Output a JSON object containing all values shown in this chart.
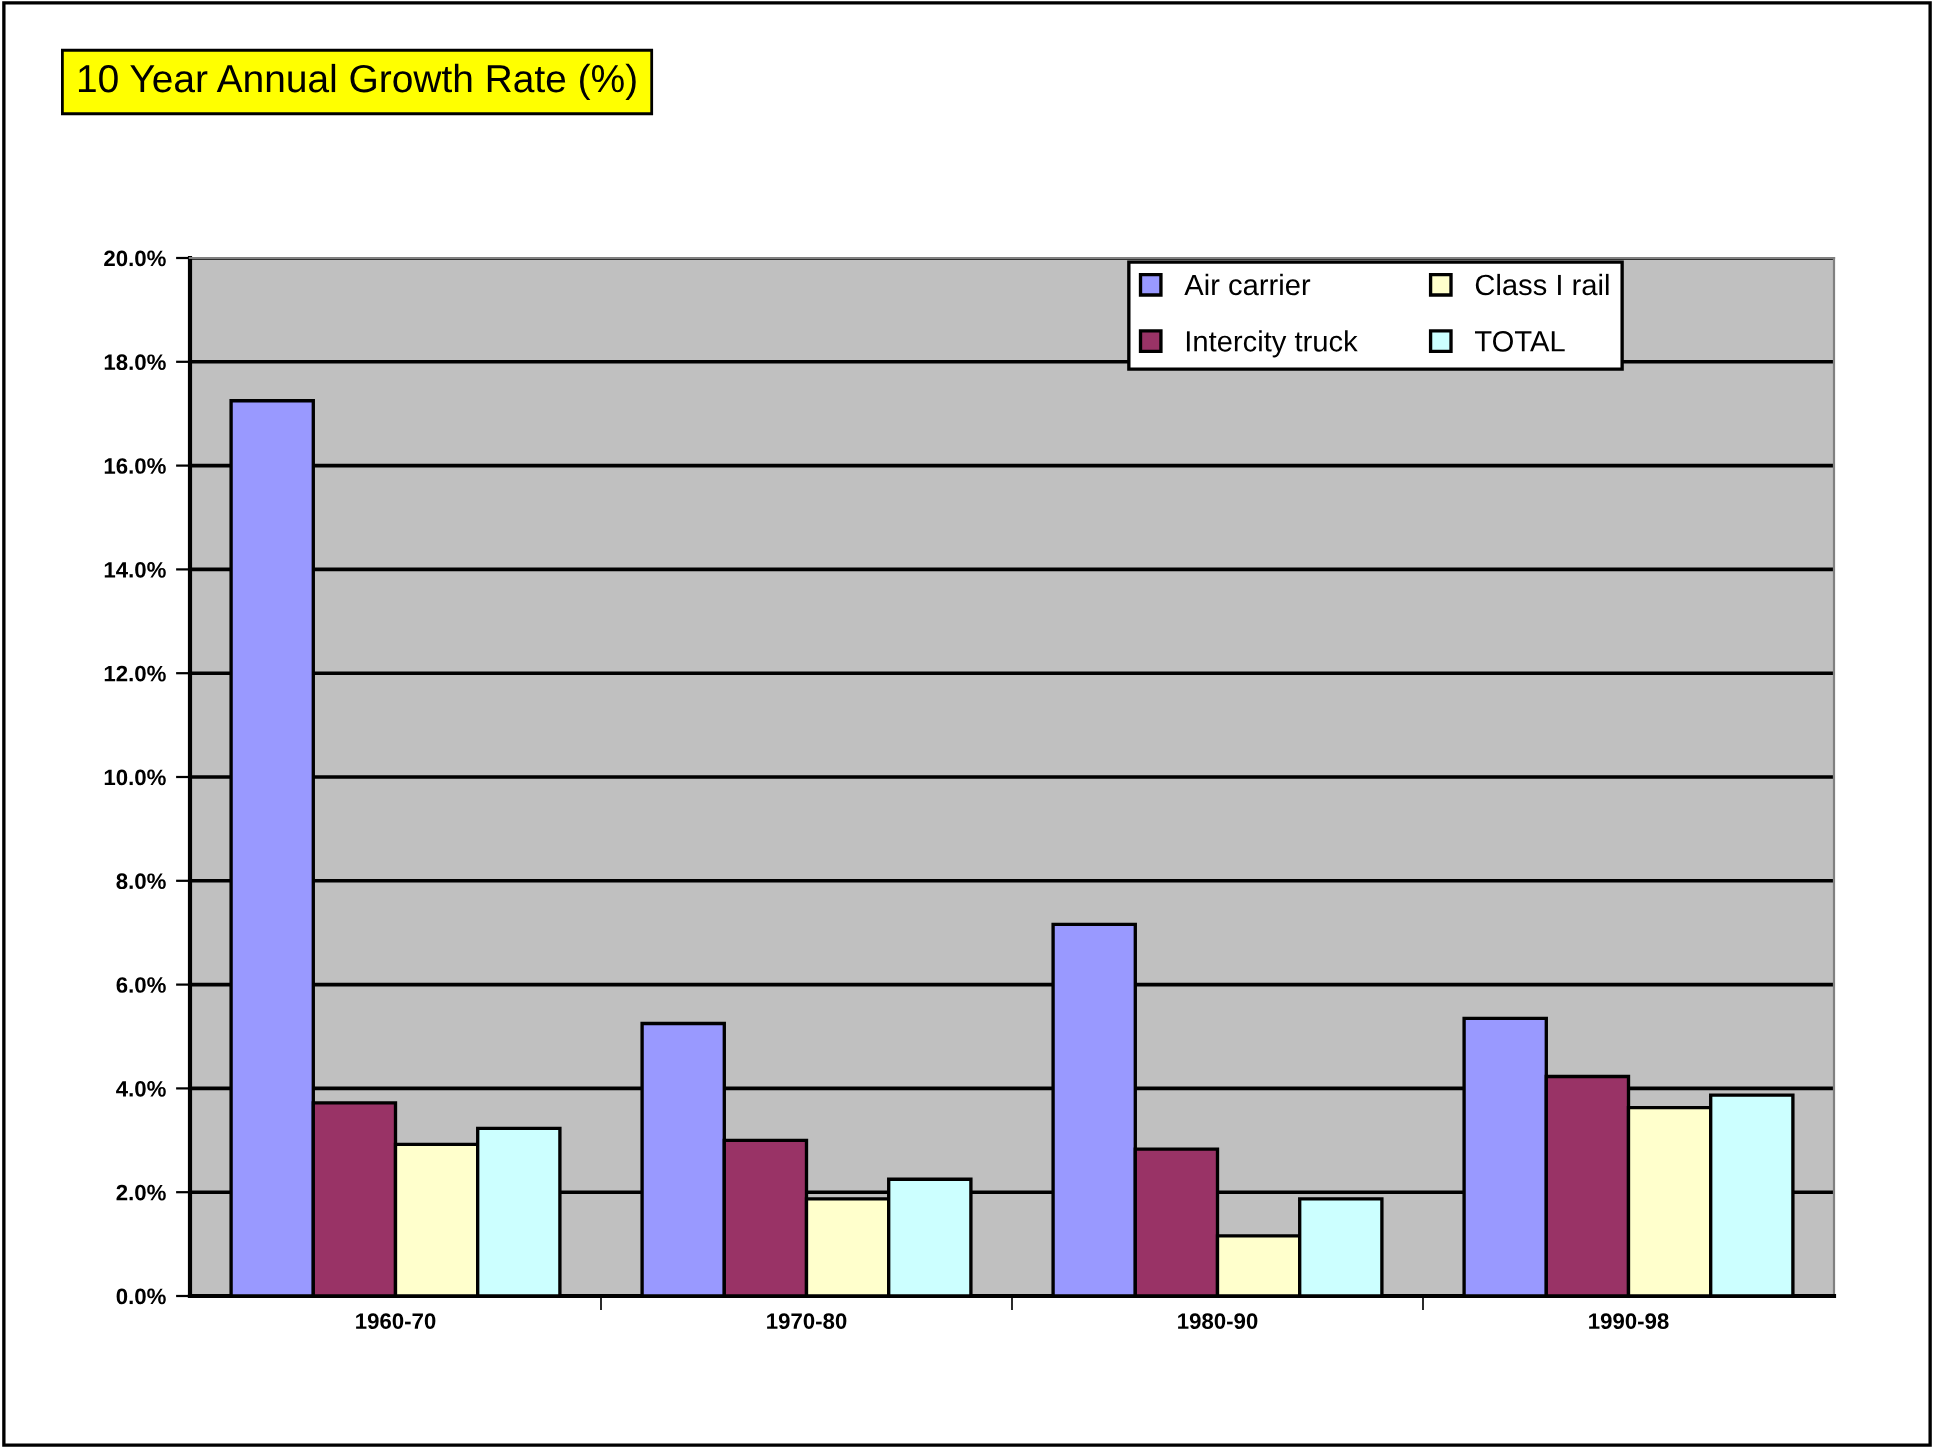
{
  "chart_data": {
    "type": "bar",
    "title": "10 Year Annual Growth Rate (%)",
    "categories": [
      "1960-70",
      "1970-80",
      "1980-90",
      "1990-98"
    ],
    "series": [
      {
        "name": "Air carrier",
        "color": "#9999ff",
        "values": [
          17.25,
          5.25,
          7.16,
          5.35
        ]
      },
      {
        "name": "Intercity truck",
        "color": "#993366",
        "values": [
          3.72,
          3.0,
          2.83,
          4.23
        ]
      },
      {
        "name": "Class I rail",
        "color": "#ffffcc",
        "values": [
          2.92,
          1.87,
          1.16,
          3.63
        ]
      },
      {
        "name": "TOTAL",
        "color": "#ccffff",
        "values": [
          3.23,
          2.25,
          1.87,
          3.87
        ]
      }
    ],
    "ylim": [
      0,
      20
    ],
    "yticks": [
      {
        "value": 0,
        "label": "0.0%"
      },
      {
        "value": 2,
        "label": "2.0%"
      },
      {
        "value": 4,
        "label": "4.0%"
      },
      {
        "value": 6,
        "label": "6.0%"
      },
      {
        "value": 8,
        "label": "8.0%"
      },
      {
        "value": 10,
        "label": "10.0%"
      },
      {
        "value": 12,
        "label": "12.0%"
      },
      {
        "value": 14,
        "label": "14.0%"
      },
      {
        "value": 16,
        "label": "16.0%"
      },
      {
        "value": 18,
        "label": "18.0%"
      },
      {
        "value": 20,
        "label": "20.0%"
      }
    ],
    "grid": "y",
    "legend": "top right"
  }
}
